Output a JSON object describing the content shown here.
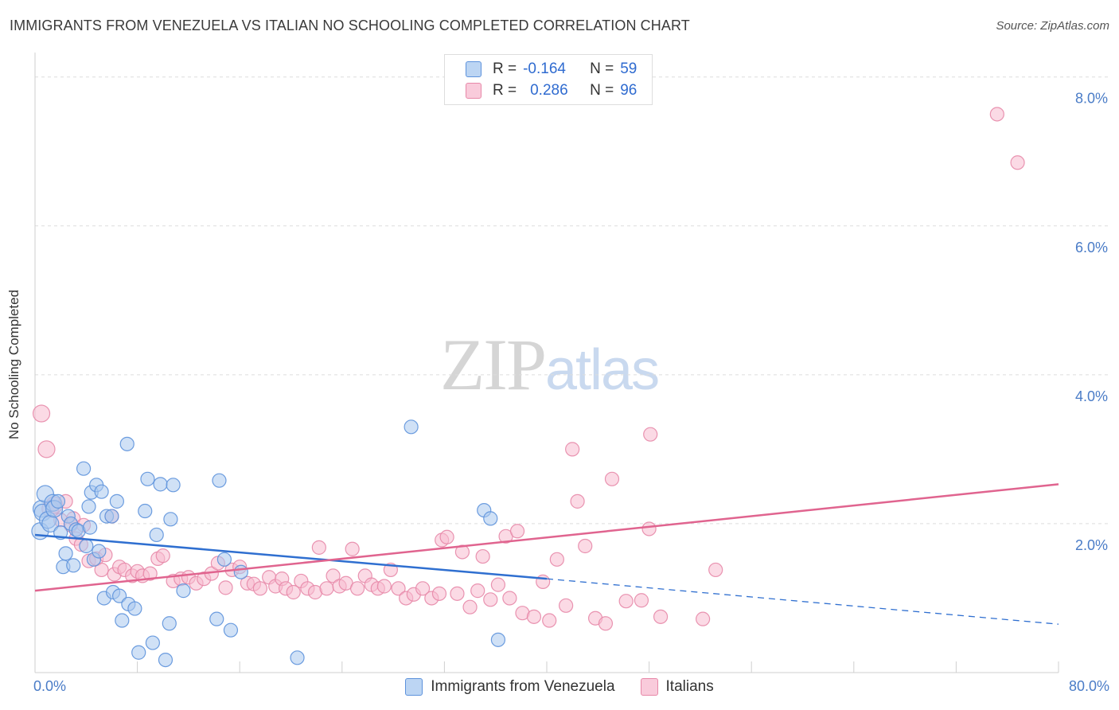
{
  "title": "IMMIGRANTS FROM VENEZUELA VS ITALIAN NO SCHOOLING COMPLETED CORRELATION CHART",
  "source": "Source: ZipAtlas.com",
  "watermark": {
    "zip": "ZIP",
    "atlas": "atlas"
  },
  "legend": {
    "rows": [
      {
        "r_label": "R =",
        "r_value": "-0.164",
        "n_label": "N =",
        "n_value": "59"
      },
      {
        "r_label": "R =",
        "r_value": "0.286",
        "n_label": "N =",
        "n_value": "96"
      }
    ]
  },
  "colors": {
    "venezuela_fill": "#a9c8ef",
    "venezuela_stroke": "#5d92dc",
    "venezuela_line": "#2f6fd0",
    "italians_fill": "#f7bcd0",
    "italians_stroke": "#e788a8",
    "italians_line": "#e0648f",
    "grid": "#dddddd",
    "tick_text": "#4a7cc7"
  },
  "chart_data": {
    "type": "scatter",
    "xlabel": "",
    "ylabel": "No Schooling Completed",
    "xlim": [
      0,
      80
    ],
    "ylim": [
      0,
      8.4
    ],
    "x_tick_labels": [
      "0.0%",
      "80.0%"
    ],
    "y_ticks": [
      2,
      4,
      6,
      8
    ],
    "y_tick_labels": [
      "2.0%",
      "4.0%",
      "6.0%",
      "8.0%"
    ],
    "grid": true,
    "legend_position": "bottom",
    "series": [
      {
        "name": "Immigrants from Venezuela",
        "trend": {
          "x": [
            0,
            40
          ],
          "y": [
            1.85,
            1.26
          ],
          "dashed_to": [
            80,
            0.65
          ]
        },
        "points": [
          [
            0.4,
            1.9
          ],
          [
            0.5,
            2.2
          ],
          [
            0.6,
            2.15
          ],
          [
            0.8,
            2.4
          ],
          [
            1.0,
            2.05
          ],
          [
            1.2,
            2.0
          ],
          [
            1.4,
            2.28
          ],
          [
            1.5,
            2.2
          ],
          [
            1.8,
            2.3
          ],
          [
            2.0,
            1.88
          ],
          [
            2.2,
            1.42
          ],
          [
            2.4,
            1.6
          ],
          [
            2.6,
            2.1
          ],
          [
            2.8,
            2.0
          ],
          [
            3.0,
            1.44
          ],
          [
            3.2,
            1.92
          ],
          [
            3.4,
            1.9
          ],
          [
            3.8,
            2.74
          ],
          [
            4.0,
            1.7
          ],
          [
            4.2,
            2.23
          ],
          [
            4.3,
            1.95
          ],
          [
            4.4,
            2.42
          ],
          [
            4.6,
            1.52
          ],
          [
            4.8,
            2.52
          ],
          [
            5.0,
            1.63
          ],
          [
            5.2,
            2.43
          ],
          [
            5.4,
            1.0
          ],
          [
            5.6,
            2.1
          ],
          [
            6.0,
            2.1
          ],
          [
            6.1,
            1.08
          ],
          [
            6.4,
            2.3
          ],
          [
            6.6,
            1.03
          ],
          [
            6.8,
            0.7
          ],
          [
            7.2,
            3.07
          ],
          [
            7.3,
            0.92
          ],
          [
            7.8,
            0.86
          ],
          [
            8.1,
            0.27
          ],
          [
            8.6,
            2.17
          ],
          [
            8.8,
            2.6
          ],
          [
            9.2,
            0.4
          ],
          [
            9.5,
            1.85
          ],
          [
            9.8,
            2.53
          ],
          [
            10.2,
            0.17
          ],
          [
            10.5,
            0.66
          ],
          [
            10.6,
            2.06
          ],
          [
            10.8,
            2.52
          ],
          [
            11.6,
            1.1
          ],
          [
            14.2,
            0.72
          ],
          [
            14.4,
            2.58
          ],
          [
            14.8,
            1.52
          ],
          [
            15.3,
            0.57
          ],
          [
            16.1,
            1.35
          ],
          [
            20.5,
            0.2
          ],
          [
            29.4,
            3.3
          ],
          [
            35.1,
            2.18
          ],
          [
            35.6,
            2.07
          ],
          [
            36.2,
            0.44
          ]
        ]
      },
      {
        "name": "Italians",
        "trend": {
          "x": [
            0,
            80
          ],
          "y": [
            1.1,
            2.53
          ]
        },
        "points": [
          [
            0.5,
            3.48
          ],
          [
            0.9,
            3.0
          ],
          [
            1.2,
            2.2
          ],
          [
            1.5,
            2.25
          ],
          [
            2.0,
            2.05
          ],
          [
            2.4,
            2.3
          ],
          [
            2.8,
            1.98
          ],
          [
            3.0,
            2.07
          ],
          [
            3.2,
            1.8
          ],
          [
            3.6,
            1.72
          ],
          [
            3.8,
            1.98
          ],
          [
            4.2,
            1.5
          ],
          [
            4.8,
            1.53
          ],
          [
            5.2,
            1.38
          ],
          [
            5.5,
            1.58
          ],
          [
            6.0,
            2.1
          ],
          [
            6.2,
            1.32
          ],
          [
            6.6,
            1.42
          ],
          [
            7.0,
            1.38
          ],
          [
            7.6,
            1.3
          ],
          [
            8.0,
            1.36
          ],
          [
            8.4,
            1.3
          ],
          [
            9.0,
            1.33
          ],
          [
            9.6,
            1.53
          ],
          [
            10.0,
            1.57
          ],
          [
            10.8,
            1.23
          ],
          [
            11.4,
            1.26
          ],
          [
            12.0,
            1.28
          ],
          [
            12.6,
            1.2
          ],
          [
            13.2,
            1.26
          ],
          [
            13.8,
            1.33
          ],
          [
            14.3,
            1.47
          ],
          [
            14.9,
            1.14
          ],
          [
            15.4,
            1.38
          ],
          [
            16.0,
            1.42
          ],
          [
            16.6,
            1.2
          ],
          [
            17.1,
            1.19
          ],
          [
            17.6,
            1.13
          ],
          [
            18.3,
            1.28
          ],
          [
            18.8,
            1.16
          ],
          [
            19.3,
            1.26
          ],
          [
            19.6,
            1.13
          ],
          [
            20.2,
            1.08
          ],
          [
            20.8,
            1.23
          ],
          [
            21.3,
            1.13
          ],
          [
            21.9,
            1.08
          ],
          [
            22.2,
            1.68
          ],
          [
            22.8,
            1.13
          ],
          [
            23.3,
            1.3
          ],
          [
            23.8,
            1.16
          ],
          [
            24.3,
            1.2
          ],
          [
            24.8,
            1.66
          ],
          [
            25.2,
            1.13
          ],
          [
            25.8,
            1.3
          ],
          [
            26.3,
            1.18
          ],
          [
            26.8,
            1.13
          ],
          [
            27.3,
            1.16
          ],
          [
            27.8,
            1.38
          ],
          [
            28.4,
            1.13
          ],
          [
            29.0,
            1.0
          ],
          [
            29.6,
            1.05
          ],
          [
            30.3,
            1.13
          ],
          [
            31.0,
            1.0
          ],
          [
            31.6,
            1.06
          ],
          [
            31.8,
            1.78
          ],
          [
            32.2,
            1.82
          ],
          [
            33.0,
            1.06
          ],
          [
            33.4,
            1.62
          ],
          [
            34.0,
            0.88
          ],
          [
            34.6,
            1.1
          ],
          [
            35.0,
            1.56
          ],
          [
            35.6,
            0.98
          ],
          [
            36.2,
            1.18
          ],
          [
            36.8,
            1.83
          ],
          [
            37.1,
            1.0
          ],
          [
            37.7,
            1.9
          ],
          [
            38.1,
            0.8
          ],
          [
            39.0,
            0.75
          ],
          [
            39.7,
            1.22
          ],
          [
            40.2,
            0.7
          ],
          [
            40.8,
            1.52
          ],
          [
            41.5,
            0.9
          ],
          [
            42.0,
            3.0
          ],
          [
            42.4,
            2.3
          ],
          [
            43.0,
            1.7
          ],
          [
            43.8,
            0.73
          ],
          [
            44.6,
            0.66
          ],
          [
            45.1,
            2.6
          ],
          [
            46.2,
            0.96
          ],
          [
            47.4,
            0.97
          ],
          [
            48.0,
            1.93
          ],
          [
            48.1,
            3.2
          ],
          [
            48.9,
            0.75
          ],
          [
            52.2,
            0.72
          ],
          [
            53.2,
            1.38
          ],
          [
            75.2,
            7.5
          ],
          [
            76.8,
            6.85
          ]
        ]
      }
    ]
  }
}
